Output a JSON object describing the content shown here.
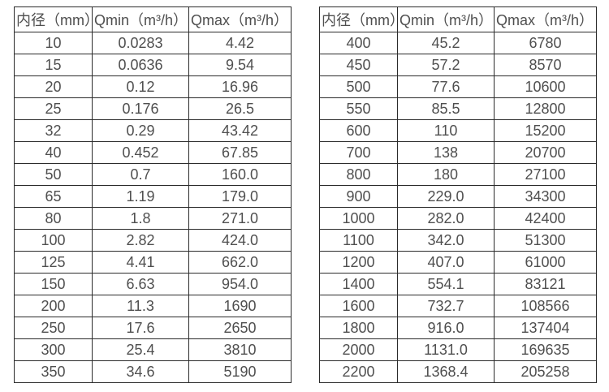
{
  "colors": {
    "border": "#2b2b2b",
    "text": "#4f4f4f",
    "background": "#ffffff"
  },
  "tables": [
    {
      "title": "flow-range-small-diameters",
      "headers": [
        "内径（mm）",
        "Qmin（m³/h）",
        "Qmax（m³/h）"
      ],
      "rows": [
        [
          "10",
          "0.0283",
          "4.42"
        ],
        [
          "15",
          "0.0636",
          "9.54"
        ],
        [
          "20",
          "0.12",
          "16.96"
        ],
        [
          "25",
          "0.176",
          "26.5"
        ],
        [
          "32",
          "0.29",
          "43.42"
        ],
        [
          "40",
          "0.452",
          "67.85"
        ],
        [
          "50",
          "0.7",
          "160.0"
        ],
        [
          "65",
          "1.19",
          "179.0"
        ],
        [
          "80",
          "1.8",
          "271.0"
        ],
        [
          "100",
          "2.82",
          "424.0"
        ],
        [
          "125",
          "4.41",
          "662.0"
        ],
        [
          "150",
          "6.63",
          "954.0"
        ],
        [
          "200",
          "11.3",
          "1690"
        ],
        [
          "250",
          "17.6",
          "2650"
        ],
        [
          "300",
          "25.4",
          "3810"
        ],
        [
          "350",
          "34.6",
          "5190"
        ]
      ]
    },
    {
      "title": "flow-range-large-diameters",
      "headers": [
        "内径（mm）",
        "Qmin（m³/h）",
        "Qmax（m³/h）"
      ],
      "rows": [
        [
          "400",
          "45.2",
          "6780"
        ],
        [
          "450",
          "57.2",
          "8570"
        ],
        [
          "500",
          "77.6",
          "10600"
        ],
        [
          "550",
          "85.5",
          "12800"
        ],
        [
          "600",
          "110",
          "15200"
        ],
        [
          "700",
          "138",
          "20700"
        ],
        [
          "800",
          "180",
          "27100"
        ],
        [
          "900",
          "229.0",
          "34300"
        ],
        [
          "1000",
          "282.0",
          "42400"
        ],
        [
          "1100",
          "342.0",
          "51300"
        ],
        [
          "1200",
          "407.0",
          "61000"
        ],
        [
          "1400",
          "554.1",
          "83121"
        ],
        [
          "1600",
          "732.7",
          "108566"
        ],
        [
          "1800",
          "916.0",
          "137404"
        ],
        [
          "2000",
          "1131.0",
          "169635"
        ],
        [
          "2200",
          "1368.4",
          "205258"
        ]
      ]
    }
  ]
}
